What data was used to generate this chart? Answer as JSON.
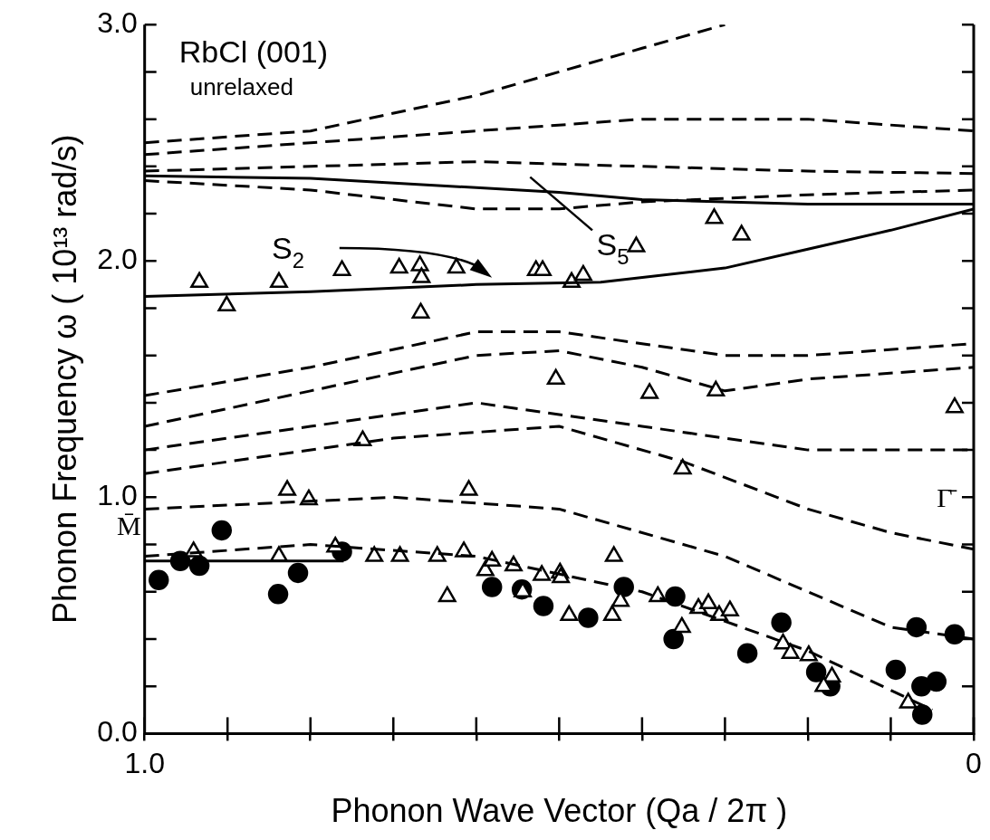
{
  "chart_data": {
    "type": "line",
    "title": "RbCl (001)",
    "subtitle": "unrelaxed",
    "xlabel": "Phonon Wave Vector (Qa / 2π )",
    "ylabel": "Phonon Frequency ω ( 10¹³ rad/s)",
    "xlim": [
      1.0,
      0
    ],
    "xticks": [
      {
        "value": 1.0,
        "label": "1.0"
      },
      {
        "value": 0.9,
        "label": null
      },
      {
        "value": 0.8,
        "label": null
      },
      {
        "value": 0.7,
        "label": null
      },
      {
        "value": 0.6,
        "label": null
      },
      {
        "value": 0.5,
        "label": null
      },
      {
        "value": 0.4,
        "label": null
      },
      {
        "value": 0.3,
        "label": null
      },
      {
        "value": 0.2,
        "label": null
      },
      {
        "value": 0.1,
        "label": null
      },
      0
    ],
    "ylim": [
      0,
      3.0
    ],
    "yticks": [
      {
        "value": 0,
        "label": "0.0"
      },
      {
        "value": 0.2,
        "label": null
      },
      {
        "value": 0.4,
        "label": null
      },
      {
        "value": 0.6,
        "label": null
      },
      {
        "value": 0.8,
        "label": null
      },
      {
        "value": 1.0,
        "label": "1.0"
      },
      {
        "value": 1.2,
        "label": null
      },
      {
        "value": 1.4,
        "label": null
      },
      {
        "value": 1.6,
        "label": null
      },
      {
        "value": 1.8,
        "label": null
      },
      {
        "value": 2.0,
        "label": "2.0"
      },
      {
        "value": 2.2,
        "label": null
      },
      {
        "value": 2.4,
        "label": null
      },
      {
        "value": 2.6,
        "label": null
      },
      {
        "value": 2.8,
        "label": null
      },
      {
        "value": 3.0,
        "label": "3.0"
      }
    ],
    "grid": false,
    "legend": false,
    "series": [
      {
        "type": "line",
        "line_style": "solid",
        "color": "#000000",
        "x": [
          1.0,
          0.8,
          0.6,
          0.45,
          0.3,
          0.2,
          0.1,
          0
        ],
        "values": [
          1.85,
          1.87,
          1.9,
          1.91,
          1.97,
          2.05,
          2.13,
          2.22
        ]
      },
      {
        "type": "line",
        "line_style": "solid",
        "color": "#000000",
        "x": [
          1.0,
          0.8,
          0.6,
          0.5,
          0.4,
          0.2,
          0
        ],
        "values": [
          2.36,
          2.35,
          2.31,
          2.29,
          2.26,
          2.24,
          2.24
        ]
      },
      {
        "type": "line",
        "line_style": "solid",
        "color": "#000000",
        "x": [
          1.0,
          0.76
        ],
        "values": [
          0.73,
          0.73
        ]
      },
      {
        "type": "line",
        "line_style": "dashed",
        "color": "#000000",
        "x": [
          1.0,
          0.8,
          0.6,
          0.5,
          0.4,
          0.3
        ],
        "values": [
          2.5,
          2.55,
          2.7,
          2.8,
          2.9,
          3.0
        ]
      },
      {
        "type": "line",
        "line_style": "dashed",
        "color": "#000000",
        "x": [
          1.0,
          0.8,
          0.6,
          0.4,
          0.2,
          0
        ],
        "values": [
          2.45,
          2.5,
          2.55,
          2.6,
          2.6,
          2.55
        ]
      },
      {
        "type": "line",
        "line_style": "dashed",
        "color": "#000000",
        "x": [
          1.0,
          0.8,
          0.6,
          0.4,
          0.2,
          0
        ],
        "values": [
          2.38,
          2.4,
          2.42,
          2.4,
          2.38,
          2.37
        ]
      },
      {
        "type": "line",
        "line_style": "dashed",
        "color": "#000000",
        "x": [
          1.0,
          0.8,
          0.6,
          0.5,
          0.4,
          0.2,
          0
        ],
        "values": [
          2.34,
          2.3,
          2.22,
          2.22,
          2.25,
          2.28,
          2.3
        ]
      },
      {
        "type": "line",
        "line_style": "dashed",
        "color": "#000000",
        "x": [
          1.0,
          0.8,
          0.6,
          0.5,
          0.4,
          0.3,
          0.2,
          0
        ],
        "values": [
          1.43,
          1.55,
          1.7,
          1.7,
          1.65,
          1.6,
          1.6,
          1.65
        ]
      },
      {
        "type": "line",
        "line_style": "dashed",
        "color": "#000000",
        "x": [
          1.0,
          0.8,
          0.6,
          0.5,
          0.4,
          0.3,
          0.2,
          0
        ],
        "values": [
          1.3,
          1.45,
          1.6,
          1.62,
          1.55,
          1.45,
          1.5,
          1.55
        ]
      },
      {
        "type": "line",
        "line_style": "dashed",
        "color": "#000000",
        "x": [
          1.0,
          0.8,
          0.6,
          0.5,
          0.4,
          0.2,
          0
        ],
        "values": [
          1.2,
          1.3,
          1.4,
          1.35,
          1.3,
          1.2,
          1.2
        ]
      },
      {
        "type": "line",
        "line_style": "dashed",
        "color": "#000000",
        "x": [
          1.0,
          0.7,
          0.5,
          0.35,
          0.2,
          0.1,
          0
        ],
        "values": [
          1.1,
          1.25,
          1.3,
          1.15,
          0.95,
          0.85,
          0.78
        ]
      },
      {
        "type": "line",
        "line_style": "dashed",
        "color": "#000000",
        "x": [
          1.0,
          0.7,
          0.5,
          0.3,
          0.1,
          0
        ],
        "values": [
          0.95,
          1.0,
          0.95,
          0.75,
          0.45,
          0.4
        ]
      },
      {
        "type": "line",
        "line_style": "dashed",
        "color": "#000000",
        "x": [
          1.0,
          0.8,
          0.6,
          0.4,
          0.2,
          0.05
        ],
        "values": [
          0.75,
          0.8,
          0.75,
          0.6,
          0.35,
          0.1
        ]
      },
      {
        "type": "scatter",
        "marker": "triangle",
        "color": "#000000",
        "x": [
          0.934,
          0.901,
          0.838,
          0.762,
          0.693,
          0.668,
          0.666,
          0.667,
          0.624,
          0.528,
          0.52,
          0.485,
          0.471,
          0.407,
          0.313,
          0.28,
          0.504,
          0.391,
          0.311,
          0.023,
          0.351,
          0.941,
          0.838,
          0.828,
          0.802,
          0.77,
          0.737,
          0.723,
          0.692,
          0.647,
          0.635,
          0.609,
          0.615,
          0.589,
          0.581,
          0.555,
          0.544,
          0.521,
          0.499,
          0.434,
          0.498,
          0.488,
          0.426,
          0.436,
          0.381,
          0.352,
          0.332,
          0.32,
          0.307,
          0.294,
          0.23,
          0.221,
          0.199,
          0.171,
          0.181,
          0.079
        ],
        "values": [
          1.91,
          1.81,
          1.91,
          1.96,
          1.97,
          1.98,
          1.93,
          1.78,
          1.97,
          1.96,
          1.96,
          1.91,
          1.94,
          2.06,
          2.18,
          2.11,
          1.5,
          1.44,
          1.45,
          1.38,
          1.12,
          0.77,
          0.75,
          1.03,
          0.99,
          0.79,
          1.24,
          0.75,
          0.75,
          0.75,
          0.58,
          1.03,
          0.77,
          0.69,
          0.73,
          0.71,
          0.6,
          0.67,
          0.68,
          0.75,
          0.66,
          0.5,
          0.56,
          0.5,
          0.58,
          0.45,
          0.53,
          0.55,
          0.5,
          0.52,
          0.38,
          0.34,
          0.33,
          0.24,
          0.2,
          0.13
        ]
      },
      {
        "type": "scatter",
        "marker": "circle",
        "color": "#000000",
        "x": [
          0.983,
          0.957,
          0.934,
          0.907,
          0.839,
          0.815,
          0.762,
          0.581,
          0.545,
          0.519,
          0.465,
          0.422,
          0.36,
          0.362,
          0.273,
          0.232,
          0.19,
          0.173,
          0.069,
          0.023,
          0.094,
          0.063,
          0.045,
          0.062
        ],
        "values": [
          0.65,
          0.73,
          0.71,
          0.86,
          0.59,
          0.68,
          0.77,
          0.62,
          0.61,
          0.54,
          0.49,
          0.62,
          0.58,
          0.4,
          0.34,
          0.47,
          0.26,
          0.2,
          0.45,
          0.42,
          0.27,
          0.2,
          0.22,
          0.08
        ]
      }
    ],
    "annotations": [
      "S$_{2}$",
      "S$_{5}$",
      "M̄",
      "Γ̄"
    ]
  }
}
